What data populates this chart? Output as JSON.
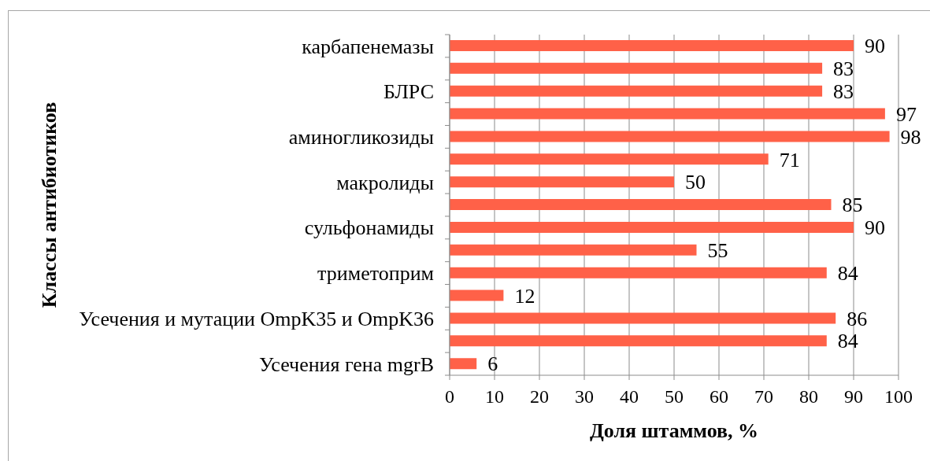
{
  "chart_data": {
    "type": "bar",
    "orientation": "horizontal",
    "categories": [
      "карбапенемазы",
      null,
      "БЛРС",
      null,
      "аминогликозиды",
      null,
      "макролиды",
      null,
      "сульфонамиды",
      null,
      "триметоприм",
      null,
      "Усечения и мутации OmpK35 и OmpK36",
      null,
      "Усечения гена mgrB"
    ],
    "values": [
      90,
      83,
      83,
      97,
      98,
      71,
      50,
      85,
      90,
      55,
      84,
      12,
      86,
      84,
      6
    ],
    "color": "#ff6148",
    "xlabel": "Доля штаммов, %",
    "ylabel": "Классы антибиотиков",
    "xlim": [
      0,
      100
    ],
    "xticks": [
      0,
      10,
      20,
      30,
      40,
      50,
      60,
      70,
      80,
      90,
      100
    ],
    "grid": "x",
    "data_labels": true
  }
}
